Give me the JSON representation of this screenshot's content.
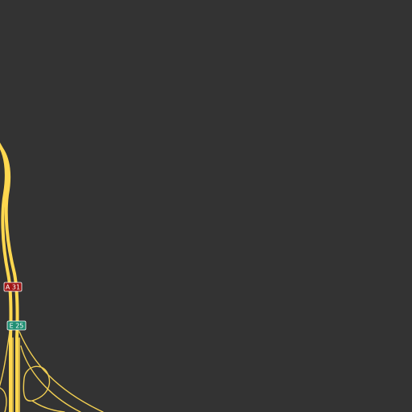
{
  "map": {
    "background_color": "#333333",
    "road_color": "#ffd84f",
    "ramp_color": "#f2cf52",
    "shields": [
      {
        "ref": "A 31",
        "network": "national",
        "color": "#a01616"
      },
      {
        "ref": "E 25",
        "network": "european",
        "color": "#1f8f73"
      }
    ]
  }
}
